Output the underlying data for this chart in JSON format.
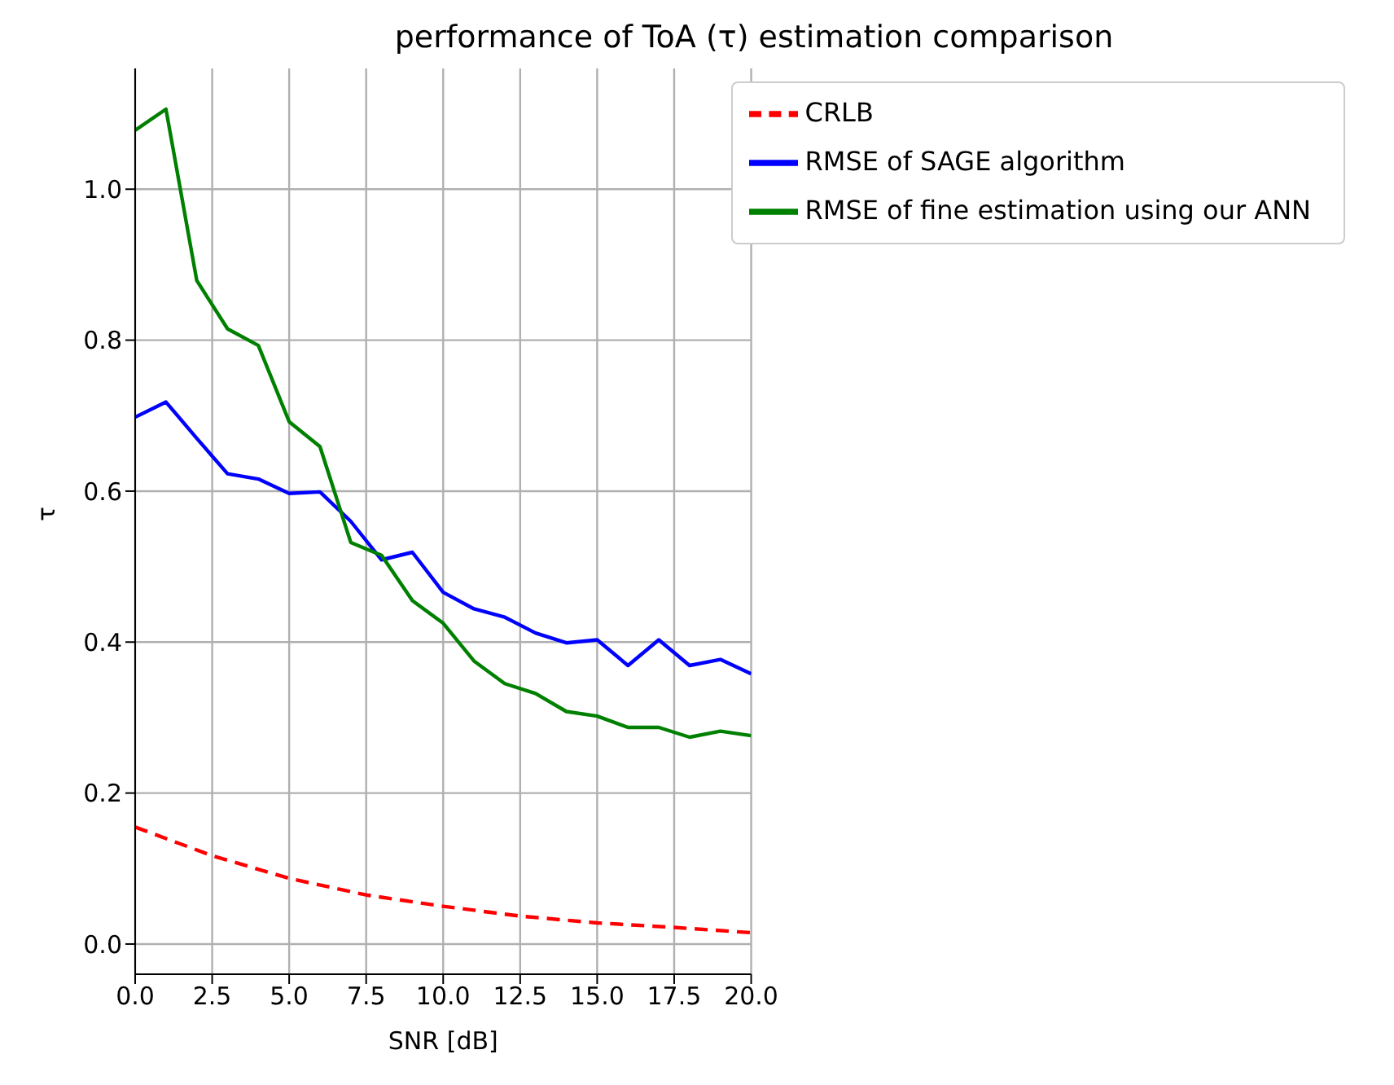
{
  "chart_data": {
    "type": "line",
    "title": "performance of ToA (τ) estimation comparison",
    "xlabel": "SNR [dB]",
    "ylabel": "τ",
    "xlim": [
      0,
      20
    ],
    "ylim": [
      -0.04,
      1.16
    ],
    "xticks": [
      {
        "value": 0,
        "label": "0.0"
      },
      {
        "value": 2.5,
        "label": "2.5"
      },
      {
        "value": 5,
        "label": "5.0"
      },
      {
        "value": 7.5,
        "label": "7.5"
      },
      {
        "value": 10,
        "label": "10.0"
      },
      {
        "value": 12.5,
        "label": "12.5"
      },
      {
        "value": 15,
        "label": "15.0"
      },
      {
        "value": 17.5,
        "label": "17.5"
      },
      {
        "value": 20,
        "label": "20.0"
      }
    ],
    "yticks": [
      {
        "value": 0,
        "label": "0.0"
      },
      {
        "value": 0.2,
        "label": "0.2"
      },
      {
        "value": 0.4,
        "label": "0.4"
      },
      {
        "value": 0.6,
        "label": "0.6"
      },
      {
        "value": 0.8,
        "label": "0.8"
      },
      {
        "value": 1,
        "label": "1.0"
      }
    ],
    "grid": true,
    "legend": "top right",
    "series": [
      {
        "name": "CRLB",
        "color": "#ff0000",
        "line_style": "dashed",
        "x": [
          0,
          2.5,
          5,
          7.5,
          10,
          12.5,
          15,
          17.5,
          20
        ],
        "values": [
          0.155,
          0.117,
          0.087,
          0.065,
          0.05,
          0.037,
          0.028,
          0.022,
          0.015
        ]
      },
      {
        "name": "RMSE of SAGE algorithm",
        "color": "#0000ff",
        "line_style": "solid",
        "x": [
          0,
          1,
          2,
          3,
          4,
          5,
          6,
          7,
          8,
          9,
          10,
          11,
          12,
          13,
          14,
          15,
          16,
          17,
          18,
          19,
          20
        ],
        "values": [
          0.698,
          0.718,
          0.67,
          0.623,
          0.616,
          0.597,
          0.599,
          0.56,
          0.509,
          0.519,
          0.466,
          0.444,
          0.433,
          0.412,
          0.399,
          0.403,
          0.369,
          0.403,
          0.369,
          0.377,
          0.358
        ]
      },
      {
        "name": "RMSE of fine estimation using our ANN",
        "color": "#008000",
        "line_style": "solid",
        "x": [
          0,
          1,
          2,
          3,
          4,
          5,
          6,
          7,
          8,
          9,
          10,
          11,
          12,
          13,
          14,
          15,
          16,
          17,
          18,
          19,
          20
        ],
        "values": [
          1.078,
          1.106,
          0.879,
          0.815,
          0.793,
          0.692,
          0.659,
          0.532,
          0.515,
          0.455,
          0.425,
          0.375,
          0.345,
          0.332,
          0.308,
          0.302,
          0.287,
          0.287,
          0.274,
          0.282,
          0.276
        ]
      }
    ]
  }
}
